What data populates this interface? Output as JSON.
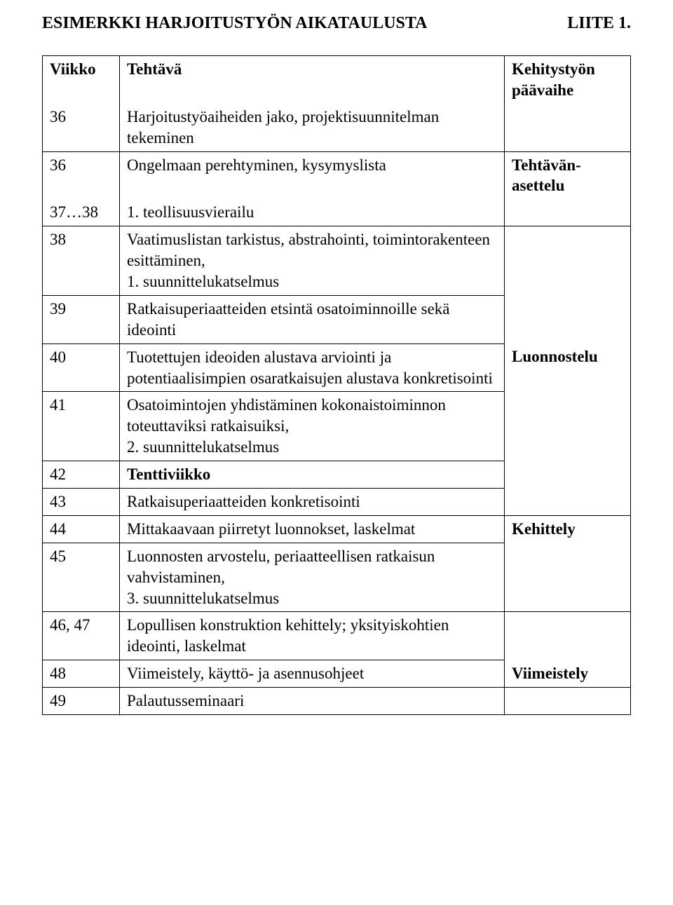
{
  "header": {
    "title": "ESIMERKKI HARJOITUSTYÖN AIKATAULUSTA",
    "appendix": "LIITE 1."
  },
  "tableHeader": {
    "col1": "Viikko",
    "col2": "Tehtävä",
    "col3a": "Kehitystyön",
    "col3b": "päävaihe"
  },
  "rows": {
    "r1": {
      "wk": "36",
      "task": "Harjoitustyöaiheiden jako, projektisuunnitelman tekeminen"
    },
    "r2": {
      "wk": "36",
      "task": "Ongelmaan perehtyminen, kysymyslista"
    },
    "r3": {
      "wk": "37…38",
      "task": "1. teollisuusvierailu"
    },
    "r4": {
      "wk": "38",
      "task_a": "Vaatimuslistan tarkistus, abstrahointi, toimintorakenteen esittäminen,",
      "task_b": "1. suunnittelukatselmus"
    },
    "r5": {
      "wk": "39",
      "task": "Ratkaisuperiaatteiden etsintä osatoiminnoille sekä ideointi"
    },
    "r6": {
      "wk": "40",
      "task": "Tuotettujen ideoiden alustava arviointi ja potentiaalisimpien osaratkaisujen alustava konkretisointi"
    },
    "r7": {
      "wk": "41",
      "task_a": "Osatoimintojen yhdistäminen kokonaistoiminnon toteuttaviksi ratkaisuiksi,",
      "task_b": "2. suunnittelukatselmus"
    },
    "r8": {
      "wk": "42",
      "task": "Tenttiviikko"
    },
    "r9": {
      "wk": "43",
      "task": "Ratkaisuperiaatteiden konkretisointi"
    },
    "r10": {
      "wk": "44",
      "task": "Mittakaavaan piirretyt luonnokset, laskelmat"
    },
    "r11": {
      "wk": "45",
      "task_a": "Luonnosten arvostelu, periaatteellisen ratkaisun vahvistaminen,",
      "task_b": "3. suunnittelukatselmus"
    },
    "r12": {
      "wk": "46, 47",
      "task": "Lopullisen konstruktion kehittely;  yksityiskohtien ideointi, laskelmat"
    },
    "r13": {
      "wk": "48",
      "task": "Viimeistely, käyttö- ja asennusohjeet"
    },
    "r14": {
      "wk": "49",
      "task": "Palautusseminaari"
    }
  },
  "phases": {
    "p1a": "Tehtävän-",
    "p1b": "asettelu",
    "p2": "Luonnostelu",
    "p3": "Kehittely",
    "p4": "Viimeistely"
  }
}
